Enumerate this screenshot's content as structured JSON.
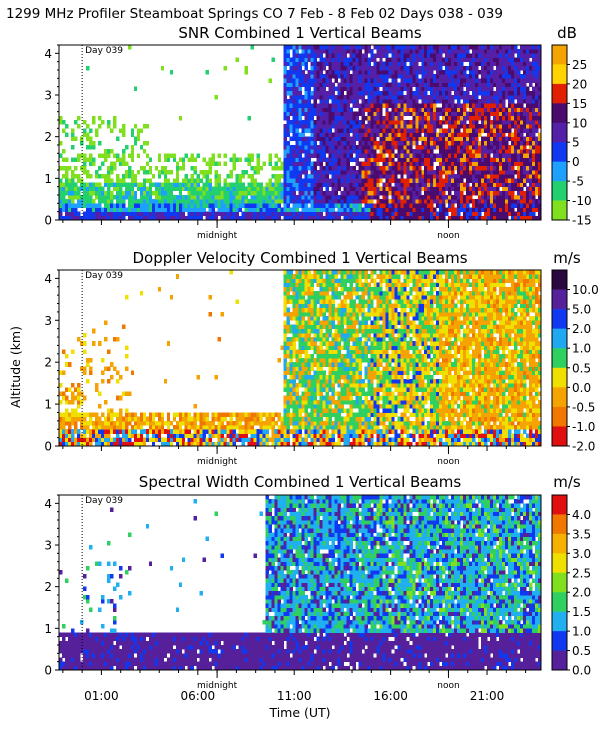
{
  "header": {
    "title": "1299 MHz Profiler  Steamboat Springs CO   7 Feb -  8 Feb 02 Days 038 - 039"
  },
  "axes": {
    "y_label": "Altitude (km)",
    "x_label": "Time (UT)",
    "day_marker": "Day 039",
    "midnight": "midnight",
    "noon": "noon",
    "time_ticks": [
      "01:00",
      "06:00",
      "11:00",
      "16:00",
      "21:00"
    ]
  },
  "colors": {
    "background": "#ffffff",
    "text": "#000000"
  },
  "chart_data": [
    {
      "type": "heatmap",
      "title": "SNR Combined 1 Vertical Beams",
      "unit": "dB",
      "xlabel": "Time (UT)",
      "ylabel": "Altitude (km)",
      "xlim": [
        -1.2,
        23.8
      ],
      "ylim": [
        0,
        4.2
      ],
      "y_ticks": [
        0,
        1,
        2,
        3,
        4
      ],
      "colorbar": {
        "labels": [
          "25",
          "20",
          "15",
          "10",
          "5",
          "0",
          "-5",
          "-10",
          "-15"
        ],
        "colors": [
          "#f5a300",
          "#ffd200",
          "#e02000",
          "#4a0a6e",
          "#5520a8",
          "#1038f0",
          "#1ea0ff",
          "#22d070",
          "#80e020"
        ]
      }
    },
    {
      "type": "heatmap",
      "title": "Doppler Velocity Combined 1 Vertical Beams",
      "unit": "m/s",
      "xlabel": "Time (UT)",
      "ylabel": "Altitude (km)",
      "xlim": [
        -1.2,
        23.8
      ],
      "ylim": [
        0,
        4.2
      ],
      "y_ticks": [
        0,
        1,
        2,
        3,
        4
      ],
      "colorbar": {
        "labels": [
          "10.0",
          "5.0",
          "2.0",
          "1.0",
          "0.5",
          "0.0",
          "-0.5",
          "-1.0",
          "-2.0"
        ],
        "colors": [
          "#2a0840",
          "#55209a",
          "#1038f0",
          "#20a8f0",
          "#30d060",
          "#f0e000",
          "#f5a300",
          "#f07800",
          "#e01010"
        ]
      }
    },
    {
      "type": "heatmap",
      "title": "Spectral Width Combined 1 Vertical Beams",
      "unit": "m/s",
      "xlabel": "Time (UT)",
      "ylabel": "Altitude (km)",
      "xlim": [
        -1.2,
        23.8
      ],
      "ylim": [
        0,
        4.2
      ],
      "y_ticks": [
        0,
        1,
        2,
        3,
        4
      ],
      "colorbar": {
        "labels": [
          "4.0",
          "3.5",
          "3.0",
          "2.5",
          "2.0",
          "1.5",
          "1.0",
          "0.5",
          "0.0"
        ],
        "colors": [
          "#e01010",
          "#f07800",
          "#f5b000",
          "#f0e000",
          "#80e020",
          "#30d060",
          "#20b0f0",
          "#1038f0",
          "#55209a"
        ]
      }
    }
  ]
}
